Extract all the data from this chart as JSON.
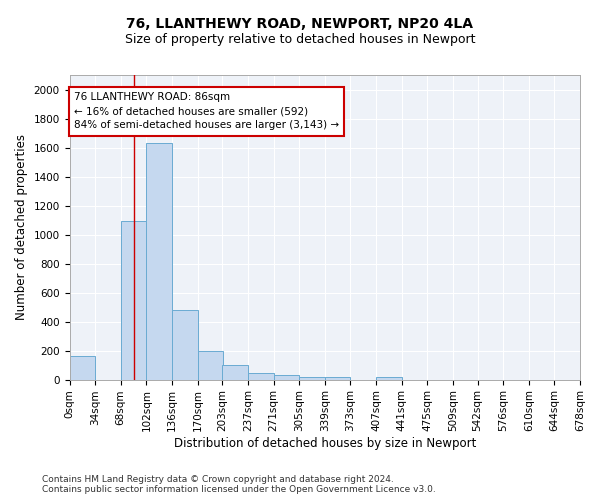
{
  "title1": "76, LLANTHEWY ROAD, NEWPORT, NP20 4LA",
  "title2": "Size of property relative to detached houses in Newport",
  "xlabel": "Distribution of detached houses by size in Newport",
  "ylabel": "Number of detached properties",
  "bar_left_edges": [
    0,
    34,
    68,
    102,
    136,
    170,
    203,
    237,
    271,
    305,
    339,
    373,
    407,
    441,
    475,
    509,
    542,
    576,
    610,
    644
  ],
  "bar_heights": [
    165,
    0,
    1090,
    1630,
    480,
    200,
    100,
    45,
    30,
    20,
    20,
    0,
    20,
    0,
    0,
    0,
    0,
    0,
    0,
    0
  ],
  "bin_width": 34,
  "bar_color": "#c5d8ef",
  "bar_edge_color": "#6aabd2",
  "property_line_x": 86,
  "ylim": [
    0,
    2100
  ],
  "yticks": [
    0,
    200,
    400,
    600,
    800,
    1000,
    1200,
    1400,
    1600,
    1800,
    2000
  ],
  "xtick_labels": [
    "0sqm",
    "34sqm",
    "68sqm",
    "102sqm",
    "136sqm",
    "170sqm",
    "203sqm",
    "237sqm",
    "271sqm",
    "305sqm",
    "339sqm",
    "373sqm",
    "407sqm",
    "441sqm",
    "475sqm",
    "509sqm",
    "542sqm",
    "576sqm",
    "610sqm",
    "644sqm",
    "678sqm"
  ],
  "annotation_text": "76 LLANTHEWY ROAD: 86sqm\n← 16% of detached houses are smaller (592)\n84% of semi-detached houses are larger (3,143) →",
  "annotation_box_color": "#ffffff",
  "annotation_box_edge": "#cc0000",
  "footer1": "Contains HM Land Registry data © Crown copyright and database right 2024.",
  "footer2": "Contains public sector information licensed under the Open Government Licence v3.0.",
  "bg_color": "#eef2f8",
  "grid_color": "#ffffff",
  "title1_fontsize": 10,
  "title2_fontsize": 9,
  "xlabel_fontsize": 8.5,
  "ylabel_fontsize": 8.5,
  "tick_fontsize": 7.5,
  "footer_fontsize": 6.5
}
